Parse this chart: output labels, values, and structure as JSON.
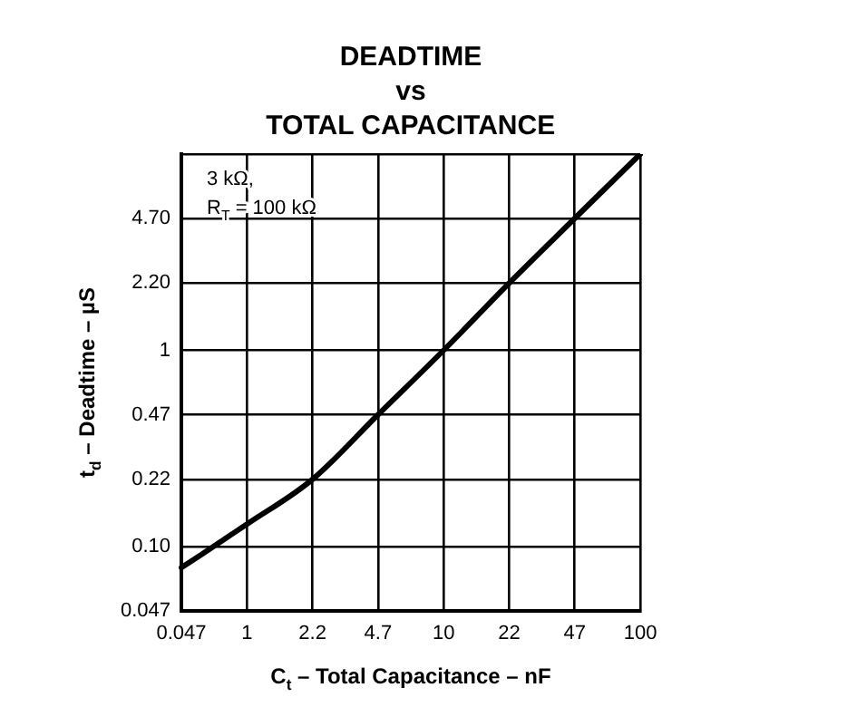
{
  "chart_data": {
    "type": "line",
    "title": "DEADTIME\nvs\nTOTAL CAPACITANCE",
    "xlabel": "C$_{t}$ – Total Capacitance – nF",
    "ylabel": "t$_{d}$ – Deadtime – µS",
    "annotations": [
      "3 kΩ,",
      "R$_{T}$ = 100 kΩ"
    ],
    "log": "y",
    "grid": true,
    "legend": false,
    "marker": "none",
    "line_style": "solid",
    "categories": [
      "0.047",
      "1",
      "2.2",
      "4.7",
      "10",
      "22",
      "47",
      "100"
    ],
    "ylim": [
      0.047,
      10
    ],
    "yticks": [
      0.047,
      {
        "value": 0.1,
        "label": "0.10"
      },
      0.22,
      0.47,
      1,
      {
        "value": 2.2,
        "label": "2.20"
      },
      {
        "value": 4.7,
        "label": "4.70"
      },
      {
        "value": 10,
        "label": null
      }
    ],
    "series": [
      {
        "color": "#000000",
        "values": [
          0.078,
          0.13,
          0.22,
          0.47,
          1,
          2.2,
          4.7,
          10
        ]
      }
    ]
  }
}
